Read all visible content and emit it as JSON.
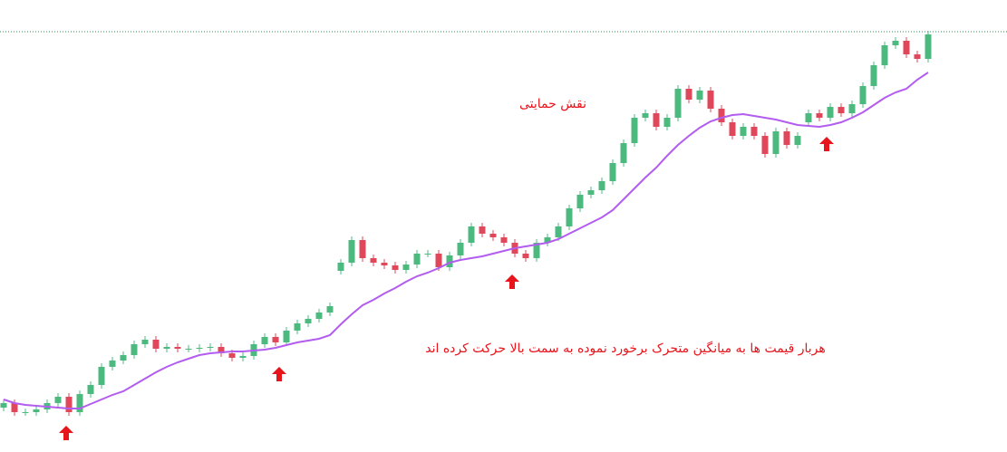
{
  "chart_data": {
    "type": "candlestick",
    "annotations": [
      "نقش حمایتی",
      "هربار قیمت ها به میانگین متحرک برخورد نموده به سمت بالا حرکت کرده اند"
    ],
    "annotation_color": "#e8141c",
    "up_color": "#4cb97f",
    "down_color": "#e0475a",
    "ylim": [
      0,
      499
    ],
    "price_line": 464,
    "price_line_color": "#2e8b57",
    "open": [
      49,
      54,
      44,
      44,
      47,
      54,
      61,
      44,
      64,
      74,
      94,
      101,
      107,
      119,
      124,
      114,
      116,
      114,
      114,
      115,
      116,
      109,
      104,
      106,
      119,
      127,
      121,
      134,
      142,
      147,
      154,
      200,
      209,
      234,
      214,
      209,
      206,
      201,
      207,
      219,
      219,
      204,
      217,
      231,
      249,
      241,
      237,
      231,
      219,
      214,
      231,
      237,
      249,
      269,
      284,
      289,
      299,
      319,
      341,
      369,
      374,
      359,
      369,
      401,
      389,
      399,
      379,
      364,
      349,
      359,
      349,
      329,
      354,
      339,
      364,
      374,
      369,
      381,
      374,
      384,
      404,
      427,
      449,
      454,
      439,
      434
    ],
    "high": [
      58,
      58,
      48,
      51,
      58,
      65,
      65,
      68,
      78,
      98,
      105,
      111,
      123,
      128,
      128,
      120,
      120,
      118,
      119,
      120,
      120,
      113,
      110,
      123,
      131,
      131,
      138,
      146,
      151,
      158,
      165,
      213,
      238,
      238,
      218,
      213,
      210,
      211,
      223,
      223,
      223,
      221,
      235,
      253,
      253,
      245,
      241,
      235,
      223,
      235,
      241,
      253,
      273,
      288,
      293,
      303,
      323,
      345,
      373,
      378,
      378,
      373,
      405,
      405,
      403,
      403,
      383,
      368,
      363,
      363,
      353,
      358,
      358,
      353,
      378,
      378,
      385,
      385,
      388,
      408,
      431,
      453,
      458,
      458,
      443,
      465
    ],
    "low": [
      45,
      40,
      40,
      40,
      43,
      50,
      40,
      40,
      60,
      70,
      90,
      97,
      103,
      115,
      110,
      110,
      110,
      110,
      110,
      111,
      105,
      100,
      100,
      102,
      115,
      117,
      117,
      130,
      138,
      143,
      150,
      196,
      205,
      210,
      205,
      202,
      197,
      197,
      203,
      215,
      200,
      200,
      213,
      227,
      237,
      233,
      227,
      215,
      210,
      210,
      227,
      233,
      245,
      265,
      280,
      285,
      295,
      315,
      337,
      365,
      355,
      355,
      365,
      385,
      385,
      375,
      360,
      345,
      345,
      345,
      325,
      325,
      335,
      335,
      360,
      365,
      365,
      370,
      370,
      380,
      400,
      423,
      445,
      435,
      430,
      430
    ],
    "close": [
      54,
      44,
      44,
      47,
      54,
      61,
      44,
      64,
      74,
      94,
      101,
      107,
      119,
      124,
      114,
      116,
      114,
      114,
      115,
      116,
      109,
      104,
      106,
      119,
      127,
      121,
      134,
      142,
      147,
      154,
      161,
      209,
      234,
      214,
      209,
      206,
      201,
      207,
      219,
      219,
      204,
      217,
      231,
      249,
      241,
      237,
      231,
      219,
      214,
      231,
      237,
      249,
      269,
      284,
      289,
      299,
      319,
      341,
      369,
      374,
      359,
      369,
      401,
      389,
      399,
      379,
      364,
      349,
      359,
      349,
      329,
      354,
      339,
      349,
      374,
      369,
      381,
      374,
      384,
      404,
      427,
      449,
      454,
      439,
      434,
      461
    ],
    "ma": {
      "color": "#b35cf0",
      "values": [
        58,
        54,
        52,
        51,
        50,
        49,
        48,
        48,
        53,
        58,
        63,
        67,
        74,
        81,
        88,
        94,
        99,
        103,
        107,
        109,
        110,
        111,
        111,
        112,
        113,
        115,
        118,
        121,
        123,
        125,
        129,
        141,
        152,
        162,
        168,
        175,
        181,
        188,
        194,
        198,
        203,
        209,
        212,
        214,
        216,
        219,
        222,
        225,
        227,
        229,
        231,
        235,
        241,
        247,
        253,
        259,
        267,
        279,
        291,
        303,
        314,
        327,
        339,
        349,
        358,
        365,
        369,
        372,
        373,
        371,
        369,
        367,
        364,
        361,
        360,
        359,
        361,
        364,
        369,
        375,
        383,
        391,
        397,
        401,
        411,
        419
      ]
    }
  }
}
